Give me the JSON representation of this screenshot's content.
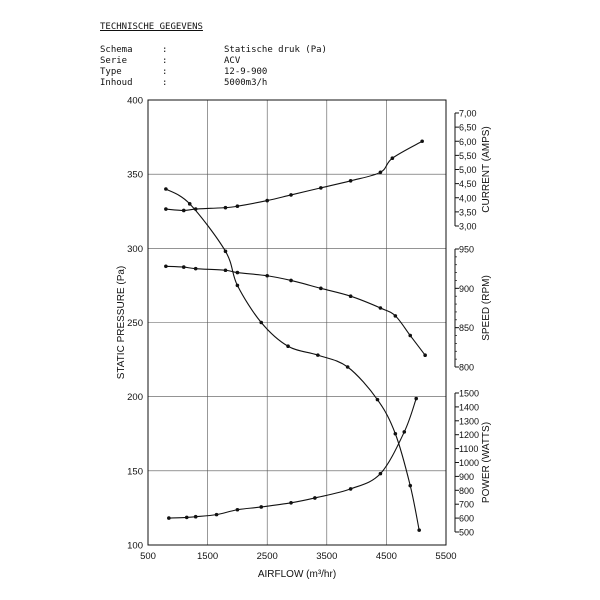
{
  "header": {
    "title": "TECHNISCHE GEGEVENS",
    "rows": [
      {
        "label": "Schema",
        "sep": ":",
        "value": "Statische druk (Pa)"
      },
      {
        "label": "Serie",
        "sep": ":",
        "value": "ACV"
      },
      {
        "label": "Type",
        "sep": ":",
        "value": "12-9-900"
      },
      {
        "label": "Inhoud",
        "sep": ":",
        "value": "5000m3/h"
      }
    ]
  },
  "chart_data": {
    "type": "line",
    "xlabel": "AIRFLOW (m³/hr)",
    "ylabel": "STATIC PRESSURE (Pa)",
    "xlim": [
      500,
      5500
    ],
    "xticks": [
      "500",
      "1500",
      "2500",
      "3500",
      "4500",
      "5500"
    ],
    "ylim": [
      100,
      400
    ],
    "yticks": [
      "100",
      "150",
      "200",
      "250",
      "300",
      "350",
      "400"
    ],
    "grid": true,
    "series": [
      {
        "axis": "static pressure",
        "x": [
          800,
          1200,
          1800,
          2000,
          2400,
          2850,
          3350,
          3850,
          4350,
          4650,
          4900,
          5050
        ],
        "y": [
          340,
          330,
          298,
          275,
          250,
          234,
          228,
          220,
          198,
          175,
          140,
          110
        ]
      },
      {
        "axis": "current",
        "x": [
          800,
          1100,
          1300,
          1800,
          2000,
          2500,
          2900,
          3400,
          3900,
          4400,
          4600,
          5100
        ],
        "y": [
          3.6,
          3.55,
          3.6,
          3.65,
          3.7,
          3.9,
          4.1,
          4.35,
          4.6,
          4.9,
          5.4,
          6.0
        ]
      },
      {
        "axis": "speed",
        "x": [
          800,
          1100,
          1300,
          1800,
          2000,
          2500,
          2900,
          3400,
          3900,
          4400,
          4650,
          4900,
          5150
        ],
        "y": [
          928,
          927,
          925,
          923,
          920,
          916,
          910,
          900,
          890,
          875,
          865,
          840,
          815
        ]
      },
      {
        "axis": "power",
        "x": [
          850,
          1150,
          1300,
          1650,
          2000,
          2400,
          2900,
          3300,
          3900,
          4400,
          4800,
          5000
        ],
        "y": [
          600,
          605,
          610,
          625,
          660,
          680,
          710,
          745,
          810,
          920,
          1220,
          1460
        ]
      }
    ],
    "right_axes": [
      {
        "label": "CURRENT (AMPS)",
        "range": [
          3.0,
          7.0
        ],
        "ticks": [
          "3,00",
          "3,50",
          "4,00",
          "4,50",
          "5,00",
          "5,50",
          "6,00",
          "6,50",
          "7,00"
        ]
      },
      {
        "label": "SPEED (RPM)",
        "range": [
          800,
          950
        ],
        "ticks": [
          "800",
          "850",
          "900",
          "950"
        ]
      },
      {
        "label": "POWER (WATTS)",
        "range": [
          500,
          1500
        ],
        "ticks": [
          "500",
          "600",
          "700",
          "800",
          "900",
          "1000",
          "1100",
          "1200",
          "1300",
          "1400",
          "1500"
        ]
      }
    ]
  }
}
